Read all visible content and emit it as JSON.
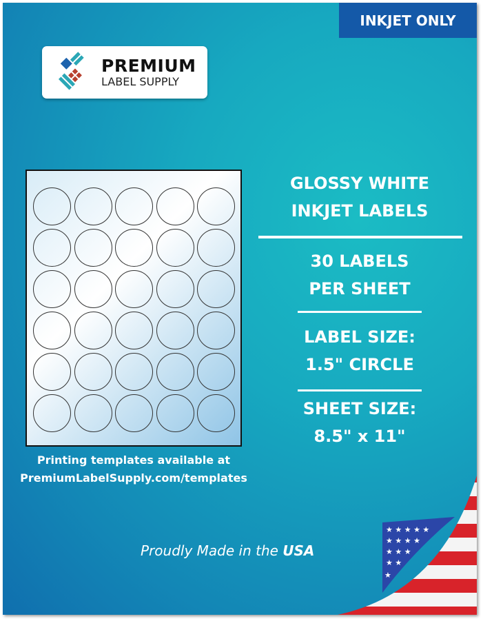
{
  "badge": "INKJET ONLY",
  "logo": {
    "line1": "PREMIUM",
    "line2": "LABEL SUPPLY"
  },
  "product": {
    "title_line1": "GLOSSY WHITE",
    "title_line2": "INKJET LABELS",
    "count_line1": "30 LABELS",
    "count_line2": "PER SHEET",
    "label_size_line1": "LABEL SIZE:",
    "label_size_line2": "1.5\" CIRCLE",
    "sheet_size_line1": "SHEET SIZE:",
    "sheet_size_line2": "8.5\" x 11\""
  },
  "templates": {
    "line1": "Printing templates available at",
    "line2": "PremiumLabelSupply.com/templates"
  },
  "made_in": {
    "prefix": "Proudly Made in the ",
    "country": "USA"
  },
  "colors": {
    "badge": "#1459a8",
    "background": "#17a9c0"
  }
}
